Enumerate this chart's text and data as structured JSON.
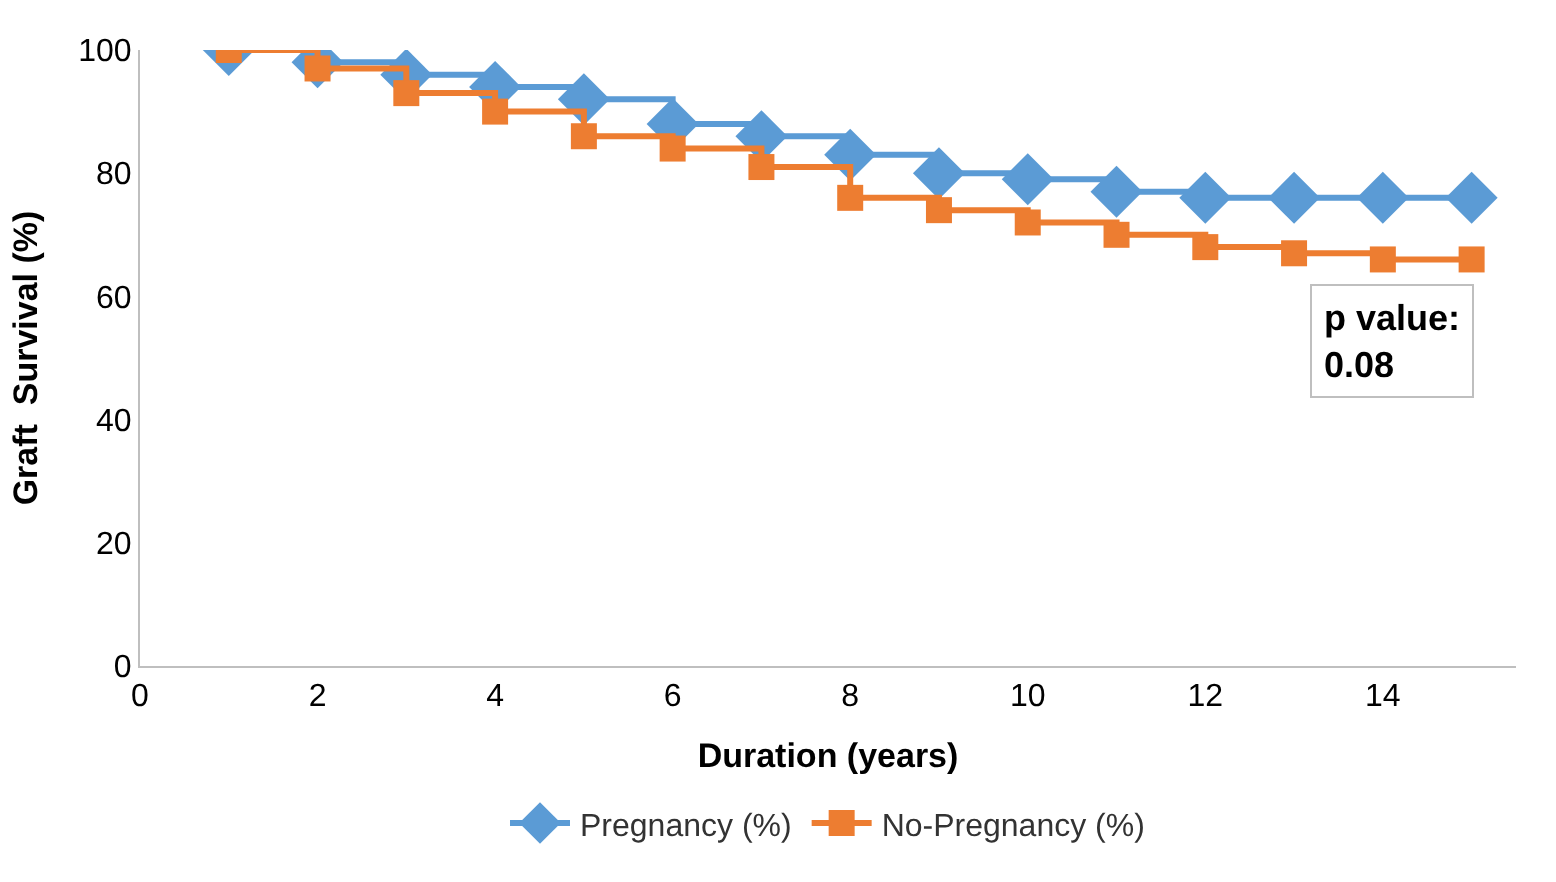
{
  "chart_data": {
    "type": "step",
    "xlabel": "Duration (years)",
    "ylabel": "Graft  Survival (%)",
    "x": [
      1,
      2,
      3,
      4,
      5,
      6,
      7,
      8,
      9,
      10,
      11,
      12,
      13,
      14,
      15
    ],
    "series": [
      {
        "name": "Pregnancy (%)",
        "color": "#5b9bd5",
        "marker": "diamond",
        "values": [
          100,
          98,
          96,
          94,
          92,
          88,
          86,
          83,
          80,
          79,
          77,
          76,
          76,
          76,
          76
        ]
      },
      {
        "name": "No-Pregnancy (%)",
        "color": "#ed7d31",
        "marker": "square",
        "values": [
          100,
          97,
          93,
          90,
          86,
          84,
          81,
          76,
          74,
          72,
          70,
          68,
          67,
          66,
          66
        ]
      }
    ],
    "annotations": [
      "p value:\n0.08"
    ],
    "xlim": [
      0,
      15.5
    ],
    "xticks": [
      0,
      2,
      4,
      6,
      8,
      10,
      12,
      14
    ],
    "ylim": [
      0,
      100
    ],
    "yticks": [
      0,
      20,
      40,
      60,
      80,
      100
    ],
    "grid": false,
    "legend": "bottom"
  }
}
